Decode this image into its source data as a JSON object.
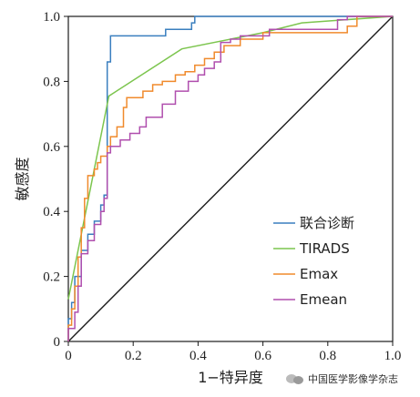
{
  "chart_data": {
    "type": "line",
    "title": "",
    "xlabel": "1−特异度",
    "ylabel": "敏感度",
    "xlim": [
      0,
      1
    ],
    "ylim": [
      0,
      1
    ],
    "x_ticks": [
      "0",
      "0.2",
      "0.4",
      "0.6",
      "0.8",
      "1.0"
    ],
    "y_ticks": [
      "0",
      "0.2",
      "0.4",
      "0.6",
      "0.8",
      "1.0"
    ],
    "grid": false,
    "legend_position": "bottom-right",
    "reference_line": {
      "from": [
        0,
        0
      ],
      "to": [
        1,
        1
      ],
      "color": "#1a1a1a"
    },
    "series": [
      {
        "name": "联合诊断",
        "color": "#3a7fbf",
        "points": [
          [
            0,
            0
          ],
          [
            0,
            0.07
          ],
          [
            0.01,
            0.07
          ],
          [
            0.01,
            0.12
          ],
          [
            0.02,
            0.12
          ],
          [
            0.02,
            0.2
          ],
          [
            0.04,
            0.2
          ],
          [
            0.04,
            0.28
          ],
          [
            0.06,
            0.28
          ],
          [
            0.06,
            0.33
          ],
          [
            0.08,
            0.33
          ],
          [
            0.08,
            0.37
          ],
          [
            0.1,
            0.37
          ],
          [
            0.1,
            0.42
          ],
          [
            0.11,
            0.42
          ],
          [
            0.11,
            0.45
          ],
          [
            0.12,
            0.45
          ],
          [
            0.12,
            0.86
          ],
          [
            0.13,
            0.86
          ],
          [
            0.13,
            0.94
          ],
          [
            0.3,
            0.94
          ],
          [
            0.3,
            0.96
          ],
          [
            0.38,
            0.96
          ],
          [
            0.38,
            0.98
          ],
          [
            0.39,
            0.98
          ],
          [
            0.39,
            1.0
          ],
          [
            1.0,
            1.0
          ]
        ]
      },
      {
        "name": "TIRADS",
        "color": "#7cc54e",
        "points": [
          [
            0,
            0.13
          ],
          [
            0.125,
            0.755
          ],
          [
            0.35,
            0.9
          ],
          [
            0.6,
            0.95
          ],
          [
            0.72,
            0.98
          ],
          [
            1.0,
            1.0
          ]
        ]
      },
      {
        "name": "Emax",
        "color": "#f08a2c",
        "points": [
          [
            0,
            0
          ],
          [
            0,
            0.05
          ],
          [
            0.01,
            0.05
          ],
          [
            0.01,
            0.1
          ],
          [
            0.02,
            0.1
          ],
          [
            0.02,
            0.17
          ],
          [
            0.03,
            0.17
          ],
          [
            0.03,
            0.26
          ],
          [
            0.04,
            0.26
          ],
          [
            0.04,
            0.35
          ],
          [
            0.05,
            0.35
          ],
          [
            0.05,
            0.44
          ],
          [
            0.06,
            0.44
          ],
          [
            0.06,
            0.51
          ],
          [
            0.08,
            0.51
          ],
          [
            0.08,
            0.53
          ],
          [
            0.09,
            0.53
          ],
          [
            0.09,
            0.55
          ],
          [
            0.1,
            0.55
          ],
          [
            0.1,
            0.57
          ],
          [
            0.12,
            0.57
          ],
          [
            0.12,
            0.6
          ],
          [
            0.13,
            0.6
          ],
          [
            0.13,
            0.63
          ],
          [
            0.15,
            0.63
          ],
          [
            0.15,
            0.66
          ],
          [
            0.17,
            0.66
          ],
          [
            0.17,
            0.72
          ],
          [
            0.18,
            0.72
          ],
          [
            0.18,
            0.75
          ],
          [
            0.23,
            0.75
          ],
          [
            0.23,
            0.77
          ],
          [
            0.26,
            0.77
          ],
          [
            0.26,
            0.79
          ],
          [
            0.29,
            0.79
          ],
          [
            0.29,
            0.8
          ],
          [
            0.33,
            0.8
          ],
          [
            0.33,
            0.82
          ],
          [
            0.36,
            0.82
          ],
          [
            0.36,
            0.83
          ],
          [
            0.39,
            0.83
          ],
          [
            0.39,
            0.85
          ],
          [
            0.42,
            0.85
          ],
          [
            0.42,
            0.87
          ],
          [
            0.45,
            0.87
          ],
          [
            0.45,
            0.89
          ],
          [
            0.48,
            0.89
          ],
          [
            0.48,
            0.91
          ],
          [
            0.53,
            0.91
          ],
          [
            0.53,
            0.93
          ],
          [
            0.6,
            0.93
          ],
          [
            0.6,
            0.95
          ],
          [
            0.86,
            0.95
          ],
          [
            0.86,
            0.97
          ],
          [
            0.89,
            0.97
          ],
          [
            0.89,
            1.0
          ],
          [
            1.0,
            1.0
          ]
        ]
      },
      {
        "name": "Emean",
        "color": "#b04fae",
        "points": [
          [
            0,
            0
          ],
          [
            0,
            0.04
          ],
          [
            0.02,
            0.04
          ],
          [
            0.02,
            0.09
          ],
          [
            0.03,
            0.09
          ],
          [
            0.03,
            0.17
          ],
          [
            0.04,
            0.17
          ],
          [
            0.04,
            0.27
          ],
          [
            0.06,
            0.27
          ],
          [
            0.06,
            0.31
          ],
          [
            0.08,
            0.31
          ],
          [
            0.08,
            0.36
          ],
          [
            0.1,
            0.36
          ],
          [
            0.1,
            0.4
          ],
          [
            0.11,
            0.4
          ],
          [
            0.11,
            0.44
          ],
          [
            0.12,
            0.44
          ],
          [
            0.12,
            0.58
          ],
          [
            0.13,
            0.58
          ],
          [
            0.13,
            0.6
          ],
          [
            0.16,
            0.6
          ],
          [
            0.16,
            0.62
          ],
          [
            0.19,
            0.62
          ],
          [
            0.19,
            0.64
          ],
          [
            0.22,
            0.64
          ],
          [
            0.22,
            0.66
          ],
          [
            0.24,
            0.66
          ],
          [
            0.24,
            0.69
          ],
          [
            0.29,
            0.69
          ],
          [
            0.29,
            0.73
          ],
          [
            0.33,
            0.73
          ],
          [
            0.33,
            0.77
          ],
          [
            0.37,
            0.77
          ],
          [
            0.37,
            0.8
          ],
          [
            0.4,
            0.8
          ],
          [
            0.4,
            0.82
          ],
          [
            0.42,
            0.82
          ],
          [
            0.42,
            0.84
          ],
          [
            0.45,
            0.84
          ],
          [
            0.45,
            0.86
          ],
          [
            0.47,
            0.86
          ],
          [
            0.47,
            0.92
          ],
          [
            0.5,
            0.92
          ],
          [
            0.5,
            0.93
          ],
          [
            0.53,
            0.93
          ],
          [
            0.53,
            0.94
          ],
          [
            0.62,
            0.94
          ],
          [
            0.62,
            0.96
          ],
          [
            0.83,
            0.96
          ],
          [
            0.83,
            0.99
          ],
          [
            0.86,
            0.99
          ],
          [
            0.86,
            1.0
          ],
          [
            1.0,
            1.0
          ]
        ]
      }
    ]
  },
  "watermark": {
    "text": "中国医学影像学杂志",
    "logo_icon": "wechat-icon"
  }
}
